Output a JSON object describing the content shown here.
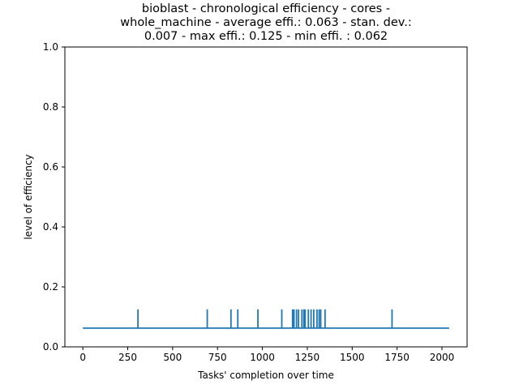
{
  "chart_data": {
    "type": "line",
    "title_lines": [
      "bioblast - chronological efficiency - cores -",
      "whole_machine - average effi.: 0.063 - stan. dev.:",
      "0.007 - max effi.: 0.125 - min effi. : 0.062"
    ],
    "xlabel": "Tasks' completion over time",
    "ylabel": "level of efficiency",
    "xlim": [
      -100,
      2140
    ],
    "ylim": [
      0,
      1.0
    ],
    "xticks": [
      0,
      250,
      500,
      750,
      1000,
      1250,
      1500,
      1750,
      2000
    ],
    "yticks": [
      0.0,
      0.2,
      0.4,
      0.6,
      0.8,
      1.0
    ],
    "ytick_labels": [
      "0.0",
      "0.2",
      "0.4",
      "0.6",
      "0.8",
      "1.0"
    ],
    "grid": false,
    "line_color": "#1f77b4",
    "series": [
      {
        "x_start": 0,
        "x_end": 2040,
        "baseline": 0.0625,
        "peak": 0.125,
        "spike_x": [
          307,
          693,
          825,
          863,
          975,
          1108,
          1168,
          1176,
          1190,
          1201,
          1220,
          1231,
          1238,
          1256,
          1271,
          1286,
          1304,
          1316,
          1325,
          1349,
          1722
        ]
      }
    ]
  }
}
